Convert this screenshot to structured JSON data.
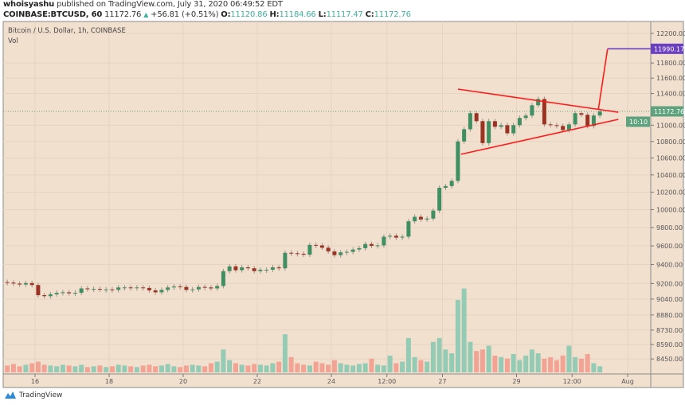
{
  "header": {
    "author": "whoisyashu",
    "published_text": "published on TradingView.com, July 31, 2020 06:49:52 EDT",
    "symbol": "COINBASE:BTCUSD, 60",
    "last": "11172.76",
    "change": "+56.81 (+0.51%)",
    "o_label": "O:",
    "o": "11120.86",
    "h_label": "H:",
    "h": "11184.66",
    "l_label": "L:",
    "l": "11117.47",
    "c_label": "C:",
    "c": "11172.76"
  },
  "legend": {
    "title": "Bitcoin / U.S. Dollar, 1h, COINBASE",
    "vol": "Vol"
  },
  "footer": {
    "brand": "TradingView"
  },
  "colors": {
    "background": "#f2e0cf",
    "up": "#3f8f63",
    "down": "#9a3324",
    "vol_up": "#93cbb5",
    "vol_down": "#f2a393",
    "trendline": "#ff1a1a",
    "target": "#6a3fc0",
    "last_price": "#5fa37e"
  },
  "chart_data": {
    "type": "candlestick",
    "scale": "log",
    "grid": true,
    "ylim": [
      8380,
      12300
    ],
    "x_start": "2020-07-15 04:00",
    "interval": "4h",
    "closes": [
      9210,
      9200,
      9190,
      9205,
      9185,
      9080,
      9070,
      9090,
      9105,
      9110,
      9100,
      9105,
      9150,
      9145,
      9145,
      9140,
      9140,
      9135,
      9160,
      9160,
      9158,
      9160,
      9155,
      9130,
      9110,
      9135,
      9160,
      9170,
      9165,
      9135,
      9140,
      9165,
      9160,
      9150,
      9175,
      9330,
      9380,
      9340,
      9370,
      9360,
      9330,
      9345,
      9345,
      9370,
      9360,
      9525,
      9520,
      9515,
      9505,
      9610,
      9605,
      9580,
      9540,
      9500,
      9530,
      9535,
      9560,
      9575,
      9620,
      9600,
      9605,
      9700,
      9710,
      9690,
      9700,
      9870,
      9920,
      9890,
      9900,
      9990,
      10250,
      10270,
      10330,
      10800,
      10950,
      11150,
      11050,
      10780,
      11050,
      10980,
      11000,
      10900,
      11000,
      11090,
      11120,
      11250,
      11330,
      11010,
      11000,
      10990,
      10940,
      11010,
      11150,
      11130,
      10990,
      11120.86,
      11172.76
    ],
    "open_first": 9215,
    "volume": [
      9,
      11,
      8,
      10,
      12,
      14,
      10,
      9,
      8,
      10,
      9,
      8,
      10,
      7,
      8,
      9,
      7,
      8,
      10,
      9,
      8,
      7,
      9,
      10,
      8,
      9,
      11,
      8,
      7,
      9,
      10,
      9,
      8,
      12,
      14,
      30,
      16,
      12,
      10,
      9,
      11,
      10,
      9,
      12,
      14,
      50,
      20,
      12,
      10,
      9,
      14,
      12,
      10,
      16,
      12,
      10,
      9,
      11,
      12,
      18,
      10,
      9,
      22,
      12,
      14,
      45,
      20,
      16,
      14,
      40,
      45,
      30,
      25,
      95,
      110,
      40,
      28,
      30,
      35,
      22,
      20,
      18,
      24,
      16,
      22,
      30,
      25,
      18,
      20,
      16,
      22,
      35,
      20,
      18,
      24,
      12,
      8
    ],
    "price_ticks": [
      "12200.00",
      "11800.00",
      "11600.00",
      "11400.00",
      "11000.00",
      "10800.00",
      "10600.00",
      "10400.00",
      "10200.00",
      "10000.00",
      "9800.00",
      "9600.00",
      "9400.00",
      "9200.00",
      "9040.00",
      "8880.00",
      "8730.00",
      "8590.00",
      "8450.00"
    ],
    "time_ticks": [
      {
        "label": "16",
        "t": "2020-07-16 00:00"
      },
      {
        "label": "18",
        "t": "2020-07-18 00:00"
      },
      {
        "label": "20",
        "t": "2020-07-20 00:00"
      },
      {
        "label": "22",
        "t": "2020-07-22 00:00"
      },
      {
        "label": "24",
        "t": "2020-07-24 00:00"
      },
      {
        "label": "12:00",
        "t": "2020-07-25 12:00"
      },
      {
        "label": "27",
        "t": "2020-07-27 00:00"
      },
      {
        "label": "29",
        "t": "2020-07-29 00:00"
      },
      {
        "label": "12:00",
        "t": "2020-07-30 12:00"
      },
      {
        "label": "Aug",
        "t": "2020-08-01 00:00"
      }
    ],
    "drawings": {
      "upper_trendline": [
        {
          "t": "2020-07-27 10:00",
          "p": 11457
        },
        {
          "t": "2020-07-31 18:00",
          "p": 11162
        }
      ],
      "lower_trendline": [
        {
          "t": "2020-07-27 12:00",
          "p": 10645
        },
        {
          "t": "2020-07-31 18:00",
          "p": 11073
        }
      ],
      "breakout_projection": [
        {
          "t": "2020-07-31 05:00",
          "p": 11195
        },
        {
          "t": "2020-07-31 11:00",
          "p": 11990.17
        }
      ],
      "target_line": [
        {
          "t": "2020-07-31 11:00",
          "p": 11990.17
        },
        {
          "t": "2020-08-01 12:00",
          "p": 11990.17
        }
      ]
    },
    "price_tags": {
      "target": "11990.17",
      "last": "11172.76",
      "countdown": "10:10"
    },
    "last_price": 11172.76,
    "target_price": 11990.17
  }
}
